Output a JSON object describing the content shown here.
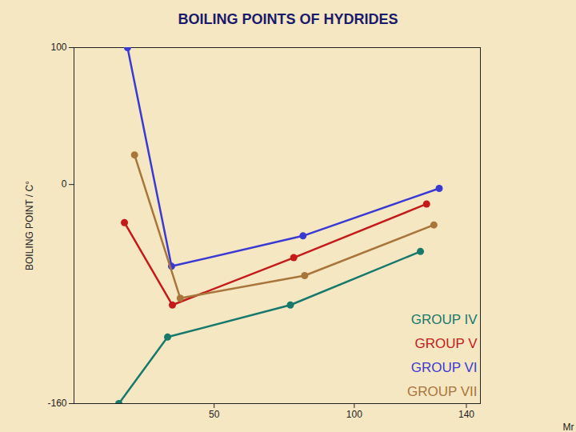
{
  "chart_data": {
    "type": "line",
    "title": "BOILING POINTS OF HYDRIDES",
    "x_label": "Mr",
    "y_label": "BOILING POINT / C°",
    "xlim": [
      0,
      145
    ],
    "xticks": [
      50,
      100,
      140
    ],
    "ylim": [
      -160,
      100
    ],
    "yticks": [
      -160,
      0,
      100
    ],
    "legend": "bottom-right",
    "marker": "circle",
    "grid": false,
    "series": [
      {
        "name": "GROUP IV",
        "color": "#17786c",
        "x": [
          16,
          33.4,
          77.2,
          123.6
        ],
        "values": [
          -160,
          -111.4,
          -88,
          -48.9
        ]
      },
      {
        "name": "GROUP V",
        "color": "#c41a1a",
        "x": [
          18,
          35.1,
          78.4,
          125.8
        ],
        "values": [
          -27.8,
          -88,
          -53.4,
          -14.2
        ]
      },
      {
        "name": "GROUP VI",
        "color": "#3a3ad2",
        "x": [
          19.1,
          34.8,
          81.7,
          130.3
        ],
        "values": [
          100,
          -59.7,
          -37.5,
          -2.8
        ]
      },
      {
        "name": "GROUP VII",
        "color": "#a8753a",
        "x": [
          21.6,
          37.9,
          82.3,
          128.4
        ],
        "values": [
          21.6,
          -83,
          -66.5,
          -29.5
        ]
      }
    ]
  }
}
